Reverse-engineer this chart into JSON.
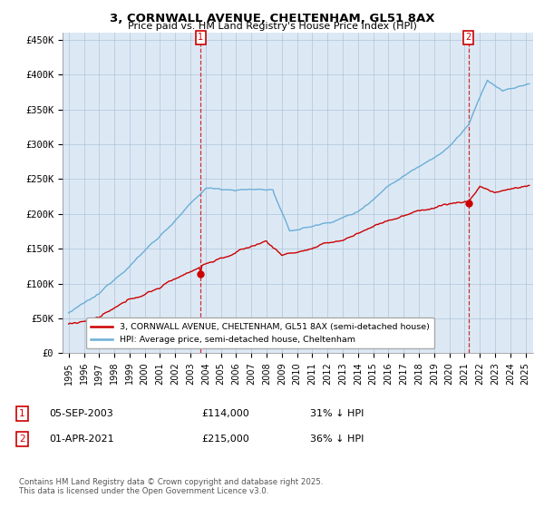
{
  "title": "3, CORNWALL AVENUE, CHELTENHAM, GL51 8AX",
  "subtitle": "Price paid vs. HM Land Registry's House Price Index (HPI)",
  "ylim": [
    0,
    460000
  ],
  "yticks": [
    0,
    50000,
    100000,
    150000,
    200000,
    250000,
    300000,
    350000,
    400000,
    450000
  ],
  "ytick_labels": [
    "£0",
    "£50K",
    "£100K",
    "£150K",
    "£200K",
    "£250K",
    "£300K",
    "£350K",
    "£400K",
    "£450K"
  ],
  "hpi_color": "#6baed6",
  "price_color": "#cc0000",
  "plot_bg_color": "#dce9f5",
  "transaction1_date": "05-SEP-2003",
  "transaction1_price": 114000,
  "transaction1_hpi_pct": "31% ↓ HPI",
  "transaction2_date": "01-APR-2021",
  "transaction2_price": 215000,
  "transaction2_hpi_pct": "36% ↓ HPI",
  "legend_line1": "3, CORNWALL AVENUE, CHELTENHAM, GL51 8AX (semi-detached house)",
  "legend_line2": "HPI: Average price, semi-detached house, Cheltenham",
  "footnote": "Contains HM Land Registry data © Crown copyright and database right 2025.\nThis data is licensed under the Open Government Licence v3.0.",
  "background_color": "#ffffff",
  "grid_color": "#b0c4d8"
}
